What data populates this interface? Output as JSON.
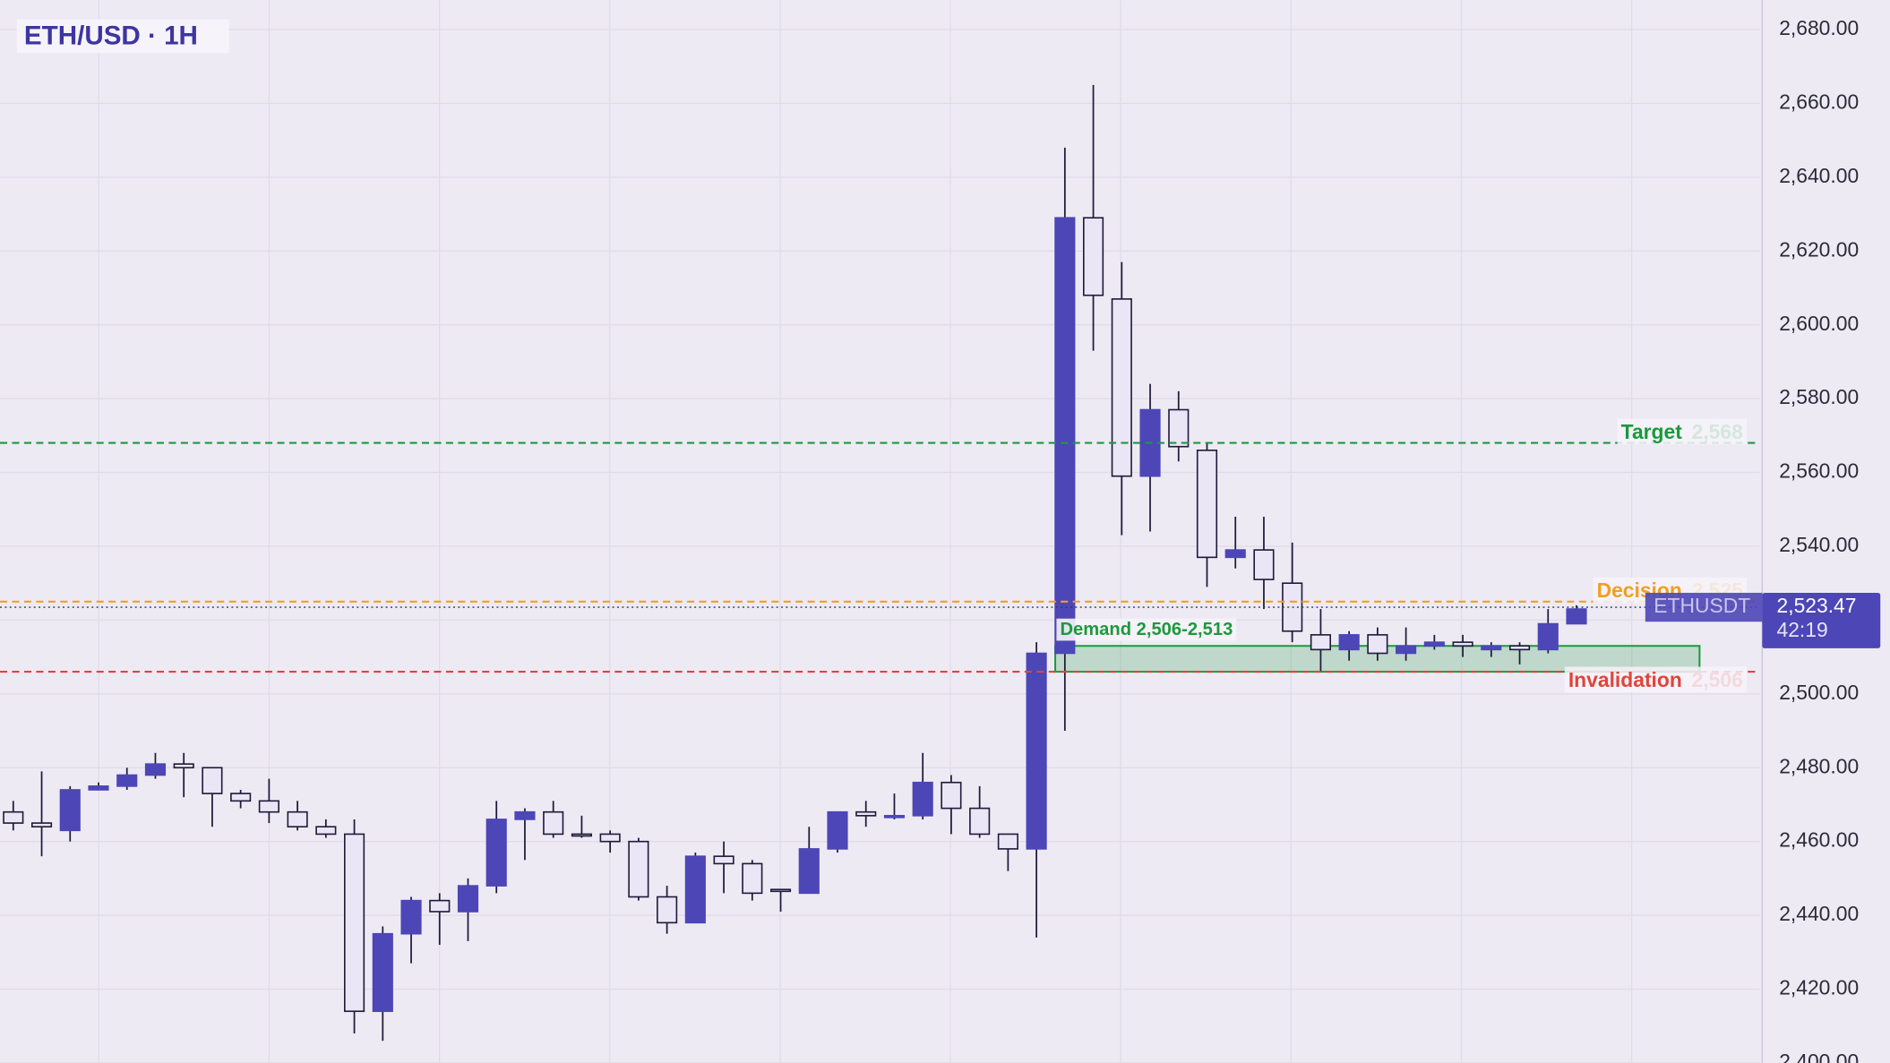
{
  "chart_data": {
    "type": "candlestick",
    "title": "ETH/USD · 1H",
    "open": [
      2468,
      2465,
      2463,
      2474,
      2475,
      2478,
      2481,
      2480,
      2473,
      2471,
      2468,
      2464,
      2462,
      2414,
      2435,
      2444,
      2441,
      2448,
      2466,
      2468,
      2462,
      2462,
      2460,
      2445,
      2438,
      2456,
      2454,
      2447,
      2446,
      2458,
      2468,
      2467,
      2467,
      2476,
      2469,
      2462,
      2458,
      2511,
      2629,
      2607,
      2559,
      2577,
      2566,
      2537,
      2539,
      2530,
      2516,
      2512,
      2516,
      2511,
      2513,
      2514,
      2512,
      2513,
      2512,
      2519
    ],
    "high": [
      2471,
      2479,
      2475,
      2476,
      2480,
      2484,
      2484,
      2480,
      2474,
      2477,
      2471,
      2466,
      2466,
      2437,
      2445,
      2446,
      2450,
      2471,
      2469,
      2471,
      2467,
      2463,
      2461,
      2448,
      2457,
      2460,
      2455,
      2447,
      2464,
      2468,
      2471,
      2473,
      2484,
      2478,
      2475,
      2462,
      2514,
      2648,
      2665,
      2617,
      2584,
      2582,
      2568,
      2548,
      2548,
      2541,
      2523,
      2517,
      2518,
      2518,
      2516,
      2516,
      2514,
      2514,
      2523,
      2524
    ],
    "low": [
      2463,
      2456,
      2460,
      2474,
      2474,
      2477,
      2472,
      2464,
      2469,
      2465,
      2463,
      2461,
      2408,
      2406,
      2427,
      2432,
      2433,
      2446,
      2455,
      2461,
      2461,
      2457,
      2444,
      2435,
      2438,
      2446,
      2444,
      2441,
      2446,
      2457,
      2464,
      2466,
      2466,
      2462,
      2461,
      2452,
      2434,
      2490,
      2593,
      2543,
      2544,
      2563,
      2529,
      2534,
      2523,
      2514,
      2506,
      2509,
      2509,
      2509,
      2512,
      2510,
      2510,
      2508,
      2511,
      2519
    ],
    "close": [
      2465,
      2464,
      2474,
      2475,
      2478,
      2481,
      2480,
      2473,
      2471,
      2468,
      2464,
      2462,
      2414,
      2435,
      2444,
      2441,
      2448,
      2466,
      2468,
      2462,
      2461.5,
      2460,
      2445,
      2438,
      2456,
      2454,
      2446,
      2446.5,
      2458,
      2468,
      2467,
      2467,
      2476,
      2469,
      2462,
      2458,
      2511,
      2629,
      2608,
      2559,
      2577,
      2567,
      2537,
      2539,
      2531,
      2517,
      2512,
      2516,
      2511,
      2513,
      2514,
      2513,
      2513,
      2512,
      2519,
      2523
    ],
    "up_color": "#4c46b6",
    "down_color": "#ebe6f5",
    "wick_color": "#1e1b3a",
    "ylim": [
      2400,
      2688
    ],
    "yticks": [
      {
        "value": 2400,
        "label": "2,400.00"
      },
      {
        "value": 2420,
        "label": "2,420.00"
      },
      {
        "value": 2440,
        "label": "2,440.00"
      },
      {
        "value": 2460,
        "label": "2,460.00"
      },
      {
        "value": 2480,
        "label": "2,480.00"
      },
      {
        "value": 2500,
        "label": "2,500.00"
      },
      {
        "value": 2520,
        "label": "2,520.00"
      },
      {
        "value": 2540,
        "label": "2,540.00"
      },
      {
        "value": 2560,
        "label": "2,560.00"
      },
      {
        "value": 2580,
        "label": "2,580.00"
      },
      {
        "value": 2600,
        "label": "2,600.00"
      },
      {
        "value": 2620,
        "label": "2,620.00"
      },
      {
        "value": 2640,
        "label": "2,640.00"
      },
      {
        "value": 2660,
        "label": "2,660.00"
      },
      {
        "value": 2680,
        "label": "2,680.00"
      }
    ],
    "grid": true,
    "levels": [
      {
        "name": "Target",
        "value": 2568,
        "value_label": "2,568",
        "color": "#1a9a3c"
      },
      {
        "name": "Decision",
        "value": 2525,
        "value_label": "2,525",
        "color": "#f0a020"
      },
      {
        "name": "Invalidation",
        "value": 2506,
        "value_label": "2,506",
        "color": "#e0443a"
      }
    ],
    "zone": {
      "label": "Demand 2,506-2,513",
      "low": 2506,
      "high": 2513,
      "color": "#1a9a3c"
    },
    "last_price": {
      "symbol": "ETHUSDT",
      "value": 2523.47,
      "label": "2,523.47",
      "countdown": "42:19",
      "color": "#4c46b6"
    }
  }
}
